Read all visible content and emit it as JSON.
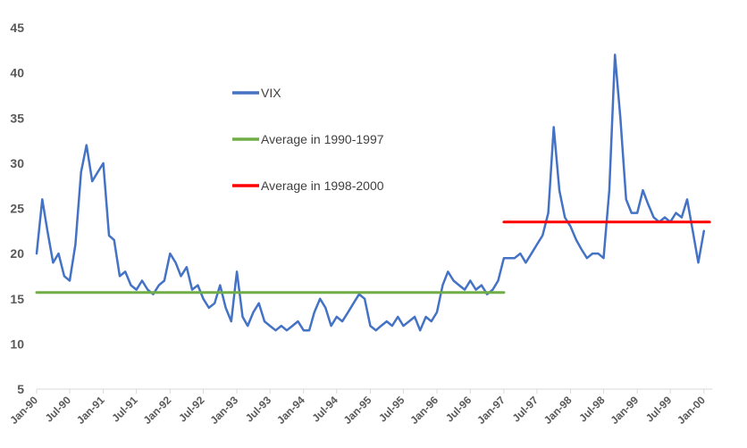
{
  "chart_data": {
    "type": "line",
    "title": "",
    "xlabel": "",
    "ylabel": "",
    "ylim": [
      5,
      45
    ],
    "yticks": [
      5,
      10,
      15,
      20,
      25,
      30,
      35,
      40,
      45
    ],
    "grid": false,
    "legend_position": "center-left",
    "x_tick_labels": [
      "Jan-90",
      "Jul-90",
      "Jan-91",
      "Jul-91",
      "Jan-92",
      "Jul-92",
      "Jan-93",
      "Jul-93",
      "Jan-94",
      "Jul-94",
      "Jan-95",
      "Jul-95",
      "Jan-96",
      "Jul-96",
      "Jan-97",
      "Jul-97",
      "Jan-98",
      "Jul-98",
      "Jan-99",
      "Jul-99",
      "Jan-00"
    ],
    "series": [
      {
        "name": "VIX",
        "color": "#4472C4",
        "x": [
          "1990-01",
          "1990-02",
          "1990-03",
          "1990-04",
          "1990-05",
          "1990-06",
          "1990-07",
          "1990-08",
          "1990-09",
          "1990-10",
          "1990-11",
          "1990-12",
          "1991-01",
          "1991-02",
          "1991-03",
          "1991-04",
          "1991-05",
          "1991-06",
          "1991-07",
          "1991-08",
          "1991-09",
          "1991-10",
          "1991-11",
          "1991-12",
          "1992-01",
          "1992-02",
          "1992-03",
          "1992-04",
          "1992-05",
          "1992-06",
          "1992-07",
          "1992-08",
          "1992-09",
          "1992-10",
          "1992-11",
          "1992-12",
          "1993-01",
          "1993-02",
          "1993-03",
          "1993-04",
          "1993-05",
          "1993-06",
          "1993-07",
          "1993-08",
          "1993-09",
          "1993-10",
          "1993-11",
          "1993-12",
          "1994-01",
          "1994-02",
          "1994-03",
          "1994-04",
          "1994-05",
          "1994-06",
          "1994-07",
          "1994-08",
          "1994-09",
          "1994-10",
          "1994-11",
          "1994-12",
          "1995-01",
          "1995-02",
          "1995-03",
          "1995-04",
          "1995-05",
          "1995-06",
          "1995-07",
          "1995-08",
          "1995-09",
          "1995-10",
          "1995-11",
          "1995-12",
          "1996-01",
          "1996-02",
          "1996-03",
          "1996-04",
          "1996-05",
          "1996-06",
          "1996-07",
          "1996-08",
          "1996-09",
          "1996-10",
          "1996-11",
          "1996-12",
          "1997-01",
          "1997-02",
          "1997-03",
          "1997-04",
          "1997-05",
          "1997-06",
          "1997-07",
          "1997-08",
          "1997-09",
          "1997-10",
          "1997-11",
          "1997-12",
          "1998-01",
          "1998-02",
          "1998-03",
          "1998-04",
          "1998-05",
          "1998-06",
          "1998-07",
          "1998-08",
          "1998-09",
          "1998-10",
          "1998-11",
          "1998-12",
          "1999-01",
          "1999-02",
          "1999-03",
          "1999-04",
          "1999-05",
          "1999-06",
          "1999-07",
          "1999-08",
          "1999-09",
          "1999-10",
          "1999-11",
          "1999-12",
          "2000-01"
        ],
        "values": [
          20,
          26,
          22.5,
          19,
          20,
          17.5,
          17,
          21,
          29,
          32,
          28,
          29,
          30,
          22,
          21.5,
          17.5,
          18,
          16.5,
          16,
          17,
          16,
          15.5,
          16.5,
          17,
          20,
          19,
          17.5,
          18.5,
          16,
          16.5,
          15,
          14,
          14.5,
          16.5,
          14,
          12.5,
          18,
          13,
          12,
          13.5,
          14.5,
          12.5,
          12,
          11.5,
          12,
          11.5,
          12,
          12.5,
          11.5,
          11.5,
          13.5,
          15,
          14,
          12,
          13,
          12.5,
          13.5,
          14.5,
          15.5,
          15,
          12,
          11.5,
          12,
          12.5,
          12,
          13,
          12,
          12.5,
          13,
          11.5,
          13,
          12.5,
          13.5,
          16.5,
          18,
          17,
          16.5,
          16,
          17,
          16,
          16.5,
          15.5,
          16,
          17,
          19.5,
          19.5,
          19.5,
          20,
          19,
          20,
          21,
          22,
          24.5,
          34,
          27,
          24,
          23,
          21.5,
          20.5,
          19.5,
          20,
          20,
          19.5,
          27,
          42,
          35,
          26,
          24.5,
          24.5,
          27,
          25.5,
          24,
          23.5,
          24,
          23.5,
          24.5,
          24,
          26,
          22.5,
          19,
          22.5
        ]
      },
      {
        "name": "Average in 1990-1997",
        "color": "#70AD47",
        "x": [
          "1990-01",
          "1997-01"
        ],
        "values": [
          15.7,
          15.7
        ]
      },
      {
        "name": "Average in 1998-2000",
        "color": "#FF0000",
        "x": [
          "1997-01",
          "2000-02"
        ],
        "values": [
          23.5,
          23.5
        ]
      }
    ]
  }
}
